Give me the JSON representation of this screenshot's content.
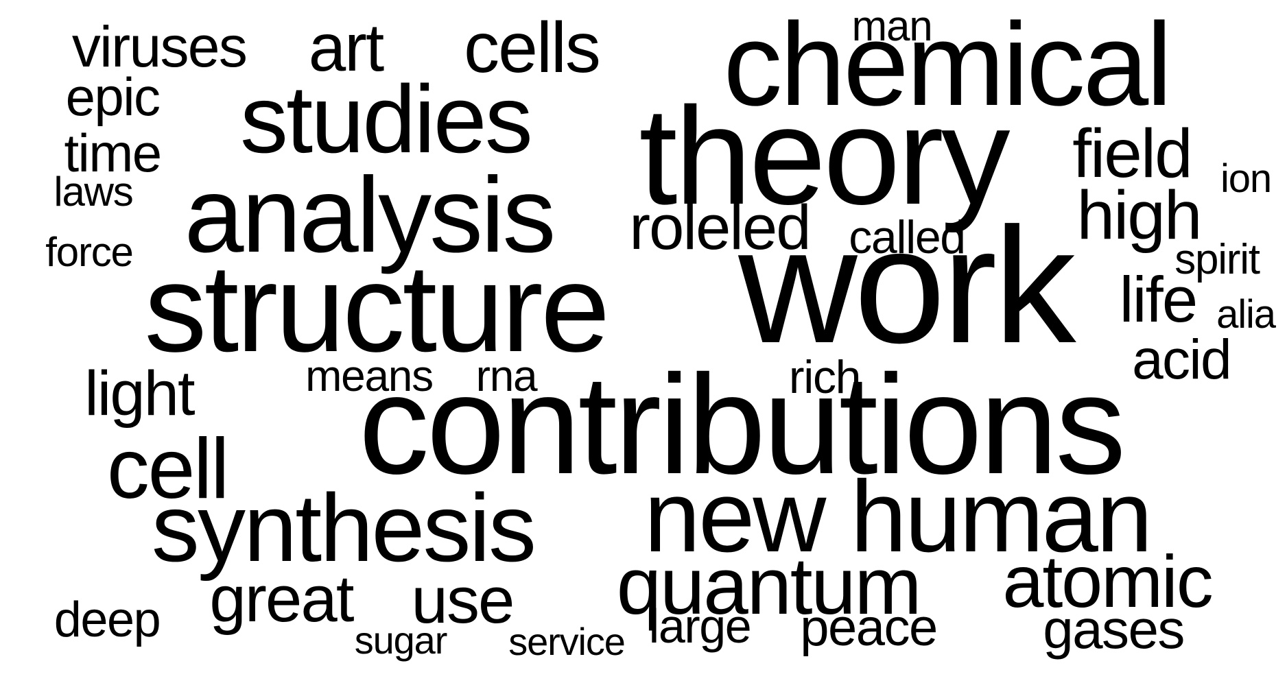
{
  "text_color": "#000000",
  "background_color": "#ffffff",
  "words": {
    "work": "work",
    "contributions": "contributions",
    "theory": "theory",
    "chemical": "chemical",
    "structure": "structure",
    "analysis": "analysis",
    "studies": "studies",
    "new_human": "new human",
    "synthesis": "synthesis",
    "cell": "cell",
    "quantum": "quantum",
    "atomic": "atomic",
    "cells": "cells",
    "high": "high",
    "field": "field",
    "life": "life",
    "great": "great",
    "use": "use",
    "roleled": "roleled",
    "light": "light",
    "art": "art",
    "viruses": "viruses",
    "acid": "acid",
    "gases": "gases",
    "peace": "peace",
    "called": "called",
    "epic": "epic",
    "time": "time",
    "large": "large",
    "means": "means",
    "rna": "rna",
    "rich": "rich",
    "deep": "deep",
    "man": "man",
    "spirit": "spirit",
    "alia": "alia",
    "ion": "ion",
    "force": "force",
    "laws": "laws",
    "sugar": "sugar",
    "service": "service"
  }
}
